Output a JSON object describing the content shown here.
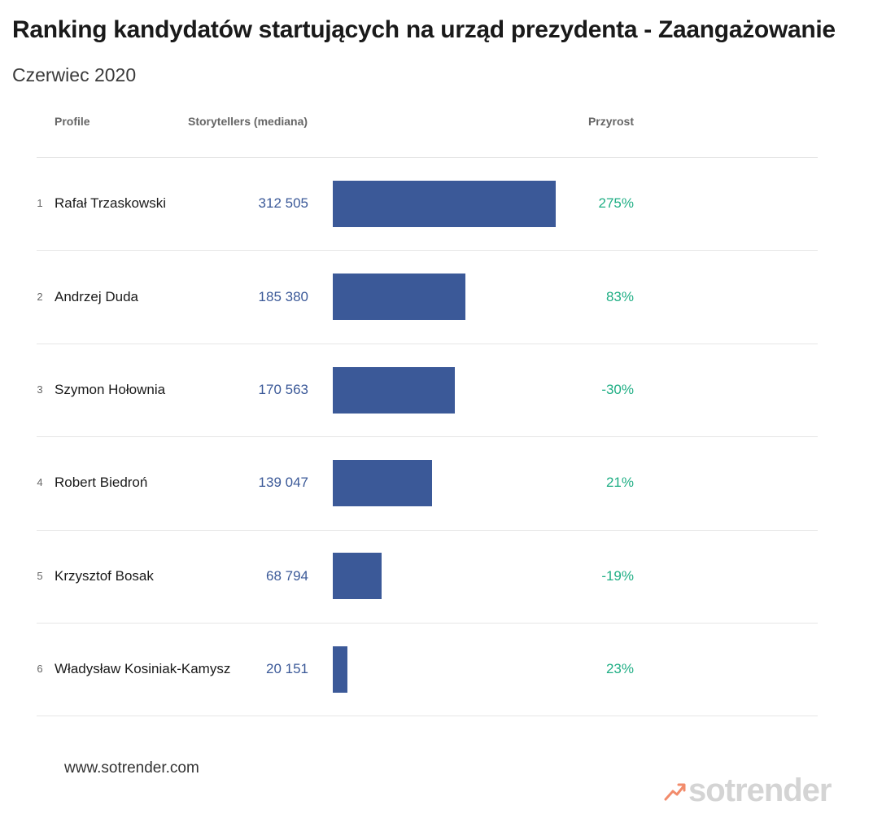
{
  "title": "Ranking kandydatów startujących na urząd prezydenta - Zaangażowanie",
  "subtitle": "Czerwiec 2020",
  "columns": {
    "profile": "Profile",
    "storytellers": "Storytellers (mediana)",
    "growth": "Przyrost"
  },
  "colors": {
    "bar": "#3b5998",
    "value": "#3b5998",
    "growth": "#1fae84",
    "logo_accent": "#f28b6b",
    "logo_text": "#d4d4d4"
  },
  "chart_data": {
    "type": "bar",
    "orientation": "horizontal",
    "title": "Ranking kandydatów startujących na urząd prezydenta - Zaangażowanie",
    "subtitle": "Czerwiec 2020",
    "xlim": [
      0,
      312505
    ],
    "rows": [
      {
        "rank": "1",
        "name": "Rafał Trzaskowski",
        "value": 312505,
        "value_label": "312 505",
        "growth": "275%"
      },
      {
        "rank": "2",
        "name": "Andrzej Duda",
        "value": 185380,
        "value_label": "185 380",
        "growth": "83%"
      },
      {
        "rank": "3",
        "name": "Szymon Hołownia",
        "value": 170563,
        "value_label": "170 563",
        "growth": "-30%"
      },
      {
        "rank": "4",
        "name": "Robert Biedroń",
        "value": 139047,
        "value_label": "139 047",
        "growth": "21%"
      },
      {
        "rank": "5",
        "name": "Krzysztof Bosak",
        "value": 68794,
        "value_label": "68 794",
        "growth": "-19%"
      },
      {
        "rank": "6",
        "name": "Władysław Kosiniak-Kamysz",
        "value": 20151,
        "value_label": "20 151",
        "growth": "23%"
      }
    ]
  },
  "footer": {
    "website": "www.sotrender.com",
    "logo_text": "sotrender",
    "logo_icon": "trend-arrow-icon"
  }
}
